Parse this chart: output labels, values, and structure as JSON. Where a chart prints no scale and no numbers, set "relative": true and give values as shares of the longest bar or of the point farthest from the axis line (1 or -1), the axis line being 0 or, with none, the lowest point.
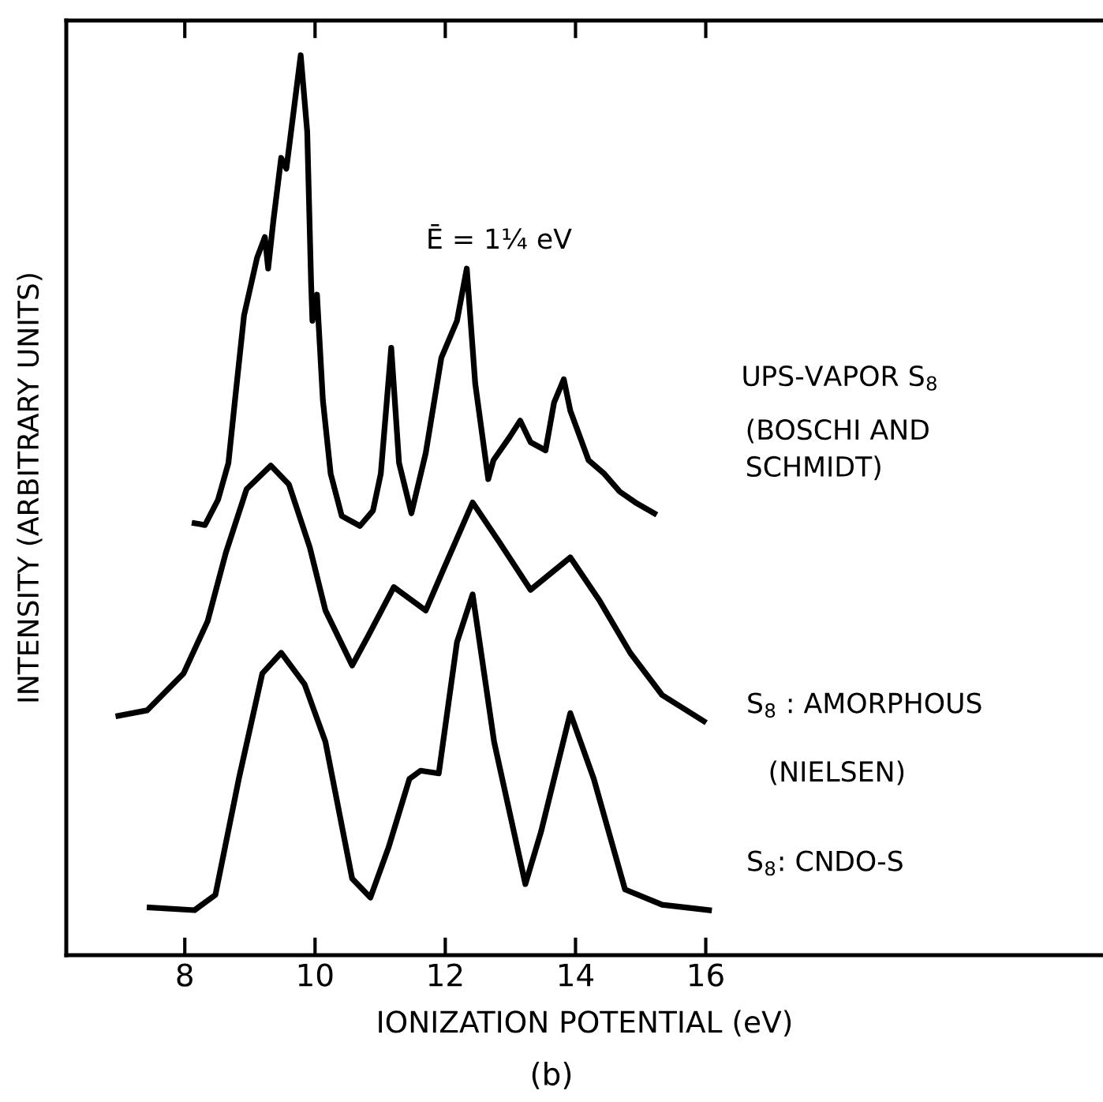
{
  "chart_data": {
    "type": "line",
    "relative": true,
    "xlabel": "IONIZATION POTENTIAL (eV)",
    "ylabel": "INTENSITY (ARBITRARY UNITS)",
    "xlim": [
      6.18,
      22.1
    ],
    "xticks": [
      8,
      10,
      12,
      14,
      16
    ],
    "grid": false,
    "legend": false,
    "marker": "none",
    "line_style": "solid",
    "annotations": [
      "Ē = 1¼ eV",
      "(BOSCHI AND\nSCHMIDT)",
      "(NIELSEN)",
      "(b)"
    ],
    "series": [
      {
        "name": "UPS-VAPOR S$_{8}$",
        "color": "#000000",
        "x": [
          8.15,
          8.31,
          8.51,
          8.67,
          8.79,
          8.91,
          9.11,
          9.23,
          9.28,
          9.36,
          9.48,
          9.56,
          9.78,
          9.88,
          9.94,
          9.96,
          10.03,
          10.12,
          10.24,
          10.41,
          10.69,
          10.89,
          11.01,
          11.17,
          11.29,
          11.48,
          11.7,
          11.94,
          12.18,
          12.33,
          12.46,
          12.66,
          12.74,
          12.99,
          13.15,
          13.31,
          13.54,
          13.67,
          13.82,
          13.92,
          14.2,
          14.44,
          14.68,
          14.92,
          15.21
        ],
        "values": [
          0.48,
          0.478,
          0.506,
          0.547,
          0.63,
          0.711,
          0.775,
          0.798,
          0.763,
          0.816,
          0.886,
          0.874,
          1.0,
          0.915,
          0.746,
          0.705,
          0.734,
          0.617,
          0.535,
          0.488,
          0.477,
          0.494,
          0.535,
          0.675,
          0.547,
          0.491,
          0.558,
          0.664,
          0.705,
          0.763,
          0.635,
          0.529,
          0.55,
          0.576,
          0.594,
          0.57,
          0.561,
          0.614,
          0.64,
          0.605,
          0.55,
          0.535,
          0.515,
          0.503,
          0.491
        ]
      },
      {
        "name": "S$_{8}$ : AMORPHOUS",
        "color": "#000000",
        "x": [
          6.98,
          7.42,
          7.98,
          8.35,
          8.63,
          8.95,
          9.32,
          9.6,
          9.92,
          10.16,
          10.57,
          10.81,
          11.21,
          11.7,
          11.98,
          12.42,
          12.83,
          13.31,
          13.92,
          14.36,
          14.84,
          15.33,
          15.97
        ],
        "values": [
          0.266,
          0.272,
          0.313,
          0.371,
          0.447,
          0.518,
          0.544,
          0.523,
          0.453,
          0.383,
          0.322,
          0.354,
          0.409,
          0.383,
          0.43,
          0.503,
          0.459,
          0.406,
          0.442,
          0.395,
          0.336,
          0.289,
          0.26
        ]
      },
      {
        "name": "S$_{8}$: CNDO-S",
        "color": "#000000",
        "x": [
          7.46,
          8.15,
          8.47,
          8.83,
          9.19,
          9.48,
          9.84,
          10.16,
          10.57,
          10.85,
          11.13,
          11.45,
          11.62,
          11.9,
          12.18,
          12.42,
          12.75,
          13.23,
          13.47,
          13.92,
          14.28,
          14.76,
          15.33,
          16.05
        ],
        "values": [
          0.053,
          0.05,
          0.067,
          0.196,
          0.313,
          0.336,
          0.301,
          0.237,
          0.085,
          0.064,
          0.12,
          0.196,
          0.205,
          0.202,
          0.348,
          0.401,
          0.237,
          0.079,
          0.137,
          0.269,
          0.196,
          0.073,
          0.056,
          0.05
        ]
      }
    ]
  }
}
